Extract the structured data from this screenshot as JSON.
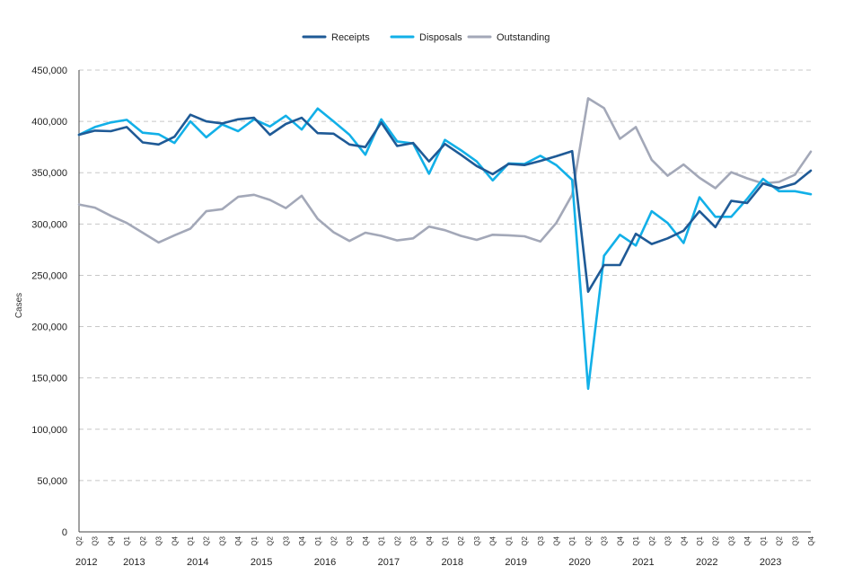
{
  "chart_data": {
    "type": "line",
    "title": "",
    "xlabel": "",
    "ylabel": "Cases",
    "ylim": [
      0,
      450000
    ],
    "yticks": [
      0,
      50000,
      100000,
      150000,
      200000,
      250000,
      300000,
      350000,
      400000,
      450000
    ],
    "ytick_labels": [
      "0",
      "50,000",
      "100,000",
      "150,000",
      "200,000",
      "250,000",
      "300,000",
      "350,000",
      "400,000",
      "450,000"
    ],
    "grid": true,
    "legend_position": "top-center",
    "quarters": [
      "Q2",
      "Q3",
      "Q4",
      "Q1",
      "Q2",
      "Q3",
      "Q4",
      "Q1",
      "Q2",
      "Q3",
      "Q4",
      "Q1",
      "Q2",
      "Q3",
      "Q4",
      "Q1",
      "Q2",
      "Q3",
      "Q4",
      "Q1",
      "Q2",
      "Q3",
      "Q4",
      "Q1",
      "Q2",
      "Q3",
      "Q4",
      "Q1",
      "Q2",
      "Q3",
      "Q4",
      "Q1",
      "Q2",
      "Q3",
      "Q4",
      "Q1",
      "Q2",
      "Q3",
      "Q4",
      "Q1",
      "Q2",
      "Q3",
      "Q4",
      "Q1",
      "Q2",
      "Q3",
      "Q4"
    ],
    "years": [
      {
        "label": "2012",
        "start_index": 0
      },
      {
        "label": "2013",
        "start_index": 3
      },
      {
        "label": "2014",
        "start_index": 7
      },
      {
        "label": "2015",
        "start_index": 11
      },
      {
        "label": "2016",
        "start_index": 15
      },
      {
        "label": "2017",
        "start_index": 19
      },
      {
        "label": "2018",
        "start_index": 23
      },
      {
        "label": "2019",
        "start_index": 27
      },
      {
        "label": "2020",
        "start_index": 31
      },
      {
        "label": "2021",
        "start_index": 35
      },
      {
        "label": "2022",
        "start_index": 39
      },
      {
        "label": "2023",
        "start_index": 43
      }
    ],
    "series": [
      {
        "name": "Receipts",
        "color": "#1f5a96",
        "values": [
          387000,
          391000,
          390500,
          394500,
          379500,
          377500,
          385000,
          406500,
          400000,
          398000,
          402000,
          403500,
          387000,
          397500,
          403500,
          388500,
          388000,
          377500,
          375000,
          399000,
          376000,
          379000,
          361000,
          378000,
          367500,
          356500,
          348500,
          358500,
          357500,
          361500,
          366000,
          371000,
          234000,
          260000,
          260000,
          290500,
          280500,
          286000,
          293500,
          312500,
          297000,
          322500,
          320500,
          339500,
          335000,
          339500,
          352000
        ]
      },
      {
        "name": "Disposals",
        "color": "#12b0e8",
        "values": [
          387000,
          394500,
          399000,
          401500,
          389000,
          387500,
          379000,
          400000,
          384500,
          397000,
          390500,
          402000,
          395000,
          405500,
          392000,
          412500,
          400000,
          387000,
          367500,
          402000,
          380500,
          378500,
          349000,
          382000,
          372000,
          361000,
          342500,
          359000,
          358500,
          366500,
          357500,
          343000,
          139500,
          269000,
          289500,
          279000,
          312500,
          301000,
          281500,
          326000,
          307000,
          307000,
          324500,
          344000,
          332000,
          332000,
          329000
        ]
      },
      {
        "name": "Outstanding",
        "color": "#a3a8b8",
        "values": [
          319000,
          316000,
          308000,
          301000,
          291500,
          282000,
          289000,
          295500,
          312500,
          314500,
          326500,
          328500,
          323500,
          315500,
          327500,
          305000,
          292000,
          283500,
          291500,
          288500,
          284000,
          286000,
          297500,
          294000,
          288500,
          284500,
          289500,
          289000,
          288000,
          283000,
          301000,
          328500,
          422500,
          413000,
          383000,
          394500,
          362500,
          347000,
          358000,
          345000,
          335000,
          350500,
          344500,
          339500,
          341000,
          348000,
          370500
        ]
      }
    ]
  }
}
